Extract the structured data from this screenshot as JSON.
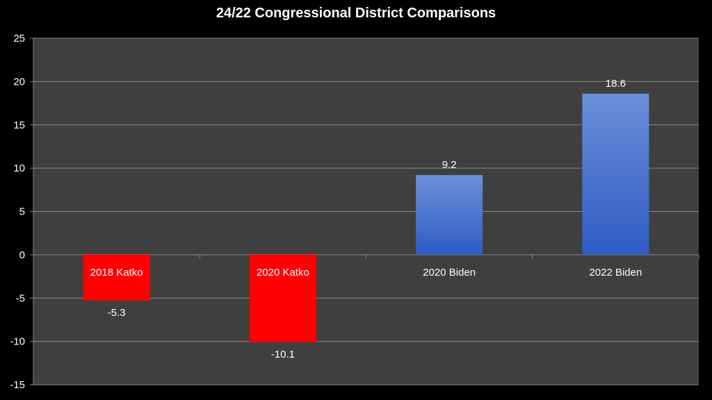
{
  "chart_data": {
    "type": "bar",
    "title": "24/22 Congressional District Comparisons",
    "categories": [
      "2018 Katko",
      "2020 Katko",
      "2020 Biden",
      "2022 Biden"
    ],
    "values": [
      -5.3,
      -10.1,
      9.2,
      18.6
    ],
    "data_labels": [
      "-5.3",
      "-10.1",
      "9.2",
      "18.6"
    ],
    "bar_colors": [
      "#ff0000",
      "#ff0000",
      "#4a78d0",
      "#4a78d0"
    ],
    "ylim": [
      -15,
      25
    ],
    "yticks": [
      25,
      20,
      15,
      10,
      5,
      0,
      -5,
      -10,
      -15
    ],
    "grid": true,
    "legend": "none",
    "colors": {
      "background": "#000000",
      "plot_area": "#3f3f3f",
      "gridline": "#8a8a8a",
      "negative_bar": "#ff0000",
      "positive_bar_top": "#6c8fd8",
      "positive_bar_bottom": "#2d5cc4"
    }
  }
}
